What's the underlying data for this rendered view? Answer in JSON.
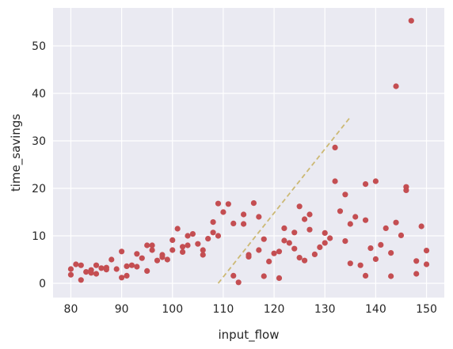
{
  "chart_data": {
    "type": "scatter",
    "title": "",
    "xlabel": "input_flow",
    "ylabel": "time_savings",
    "xlim": [
      76.5,
      153.5
    ],
    "ylim": [
      -3,
      58
    ],
    "xticks": [
      80,
      90,
      100,
      110,
      120,
      130,
      140,
      150
    ],
    "yticks": [
      0,
      10,
      20,
      30,
      40,
      50
    ],
    "grid": true,
    "background_color": "#eaeaf2",
    "point_color": "#c44e52",
    "line_color": "#ccb974",
    "series": [
      {
        "points": [
          [
            80,
            3.0
          ],
          [
            80,
            1.8
          ],
          [
            81,
            4.0
          ],
          [
            82,
            3.8
          ],
          [
            82,
            0.7
          ],
          [
            83,
            2.4
          ],
          [
            84,
            2.8
          ],
          [
            84,
            2.2
          ],
          [
            85,
            3.8
          ],
          [
            85,
            2.0
          ],
          [
            86,
            3.2
          ],
          [
            87,
            3.3
          ],
          [
            87,
            2.9
          ],
          [
            88,
            5.0
          ],
          [
            89,
            3.0
          ],
          [
            90,
            6.7
          ],
          [
            90,
            1.2
          ],
          [
            91,
            3.6
          ],
          [
            91,
            1.6
          ],
          [
            92,
            3.8
          ],
          [
            93,
            6.2
          ],
          [
            93,
            3.5
          ],
          [
            94,
            5.3
          ],
          [
            95,
            8.0
          ],
          [
            95,
            2.6
          ],
          [
            96,
            8.0
          ],
          [
            96,
            7.0
          ],
          [
            97,
            4.8
          ],
          [
            98,
            6.0
          ],
          [
            98,
            5.5
          ],
          [
            99,
            5.0
          ],
          [
            100,
            9.1
          ],
          [
            100,
            7.0
          ],
          [
            101,
            11.5
          ],
          [
            102,
            7.7
          ],
          [
            102,
            6.6
          ],
          [
            103,
            10.0
          ],
          [
            103,
            8.0
          ],
          [
            104,
            10.4
          ],
          [
            105,
            8.3
          ],
          [
            106,
            7.0
          ],
          [
            106,
            6.0
          ],
          [
            107,
            9.4
          ],
          [
            108,
            12.9
          ],
          [
            108,
            10.7
          ],
          [
            109,
            16.8
          ],
          [
            109,
            10.0
          ],
          [
            110,
            15.0
          ],
          [
            111,
            16.7
          ],
          [
            112,
            12.6
          ],
          [
            112,
            1.6
          ],
          [
            113,
            0.2
          ],
          [
            114,
            14.5
          ],
          [
            114,
            12.5
          ],
          [
            115,
            6.0
          ],
          [
            115,
            5.6
          ],
          [
            116,
            16.9
          ],
          [
            117,
            14.0
          ],
          [
            117,
            7.0
          ],
          [
            118,
            9.3
          ],
          [
            118,
            1.5
          ],
          [
            119,
            4.6
          ],
          [
            120,
            6.3
          ],
          [
            121,
            6.7
          ],
          [
            121,
            1.1
          ],
          [
            122,
            11.6
          ],
          [
            122,
            9.0
          ],
          [
            123,
            8.5
          ],
          [
            124,
            10.7
          ],
          [
            124,
            7.3
          ],
          [
            125,
            16.2
          ],
          [
            125,
            5.4
          ],
          [
            126,
            13.5
          ],
          [
            126,
            4.8
          ],
          [
            127,
            14.5
          ],
          [
            127,
            11.3
          ],
          [
            128,
            6.1
          ],
          [
            129,
            7.6
          ],
          [
            130,
            10.6
          ],
          [
            130,
            8.5
          ],
          [
            131,
            9.5
          ],
          [
            132,
            28.6
          ],
          [
            132,
            21.5
          ],
          [
            133,
            15.2
          ],
          [
            134,
            18.7
          ],
          [
            134,
            8.9
          ],
          [
            135,
            12.5
          ],
          [
            135,
            4.2
          ],
          [
            136,
            14.0
          ],
          [
            137,
            3.8
          ],
          [
            138,
            20.9
          ],
          [
            138,
            13.3
          ],
          [
            138,
            1.6
          ],
          [
            139,
            7.4
          ],
          [
            140,
            21.5
          ],
          [
            140,
            5.1
          ],
          [
            141,
            8.1
          ],
          [
            142,
            11.6
          ],
          [
            143,
            6.4
          ],
          [
            143,
            1.5
          ],
          [
            144,
            41.5
          ],
          [
            144,
            12.8
          ],
          [
            145,
            10.1
          ],
          [
            146,
            20.3
          ],
          [
            146,
            19.6
          ],
          [
            147,
            55.3
          ],
          [
            148,
            4.7
          ],
          [
            148,
            2.0
          ],
          [
            149,
            12.0
          ],
          [
            150,
            6.9
          ],
          [
            150,
            4.0
          ]
        ]
      }
    ],
    "trend_line": {
      "style": "dashed",
      "points": [
        [
          109,
          0
        ],
        [
          135,
          35
        ]
      ]
    }
  }
}
